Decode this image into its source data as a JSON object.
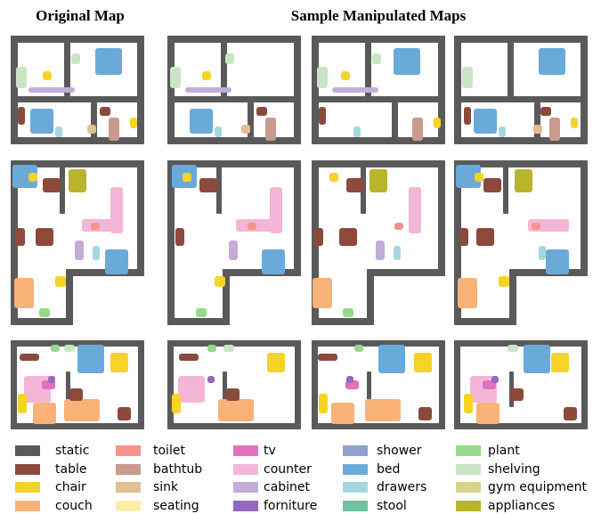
{
  "header": {
    "left": "Original Map",
    "right": "Sample Manipulated Maps"
  },
  "legend": [
    {
      "label": "static",
      "color": "#5a5a5a"
    },
    {
      "label": "table",
      "color": "#8b4a3c"
    },
    {
      "label": "chair",
      "color": "#f5d327"
    },
    {
      "label": "couch",
      "color": "#f9b277"
    },
    {
      "label": "toilet",
      "color": "#f5938b"
    },
    {
      "label": "bathtub",
      "color": "#c99a8d"
    },
    {
      "label": "sink",
      "color": "#e0c08f"
    },
    {
      "label": "seating",
      "color": "#fbefaa"
    },
    {
      "label": "tv",
      "color": "#e070c0"
    },
    {
      "label": "counter",
      "color": "#f4b6d6"
    },
    {
      "label": "cabinet",
      "color": "#c3acd8"
    },
    {
      "label": "forniture",
      "color": "#9468be"
    },
    {
      "label": "shower",
      "color": "#8fa3cc"
    },
    {
      "label": "bed",
      "color": "#6aaad8"
    },
    {
      "label": "drawers",
      "color": "#a4d8e0"
    },
    {
      "label": "stool",
      "color": "#6ec2a0"
    },
    {
      "label": "plant",
      "color": "#95d98a"
    },
    {
      "label": "shelving",
      "color": "#c9e6c4"
    },
    {
      "label": "gym equipment",
      "color": "#d8d38e"
    },
    {
      "label": "appliances",
      "color": "#b8b52a"
    }
  ]
}
